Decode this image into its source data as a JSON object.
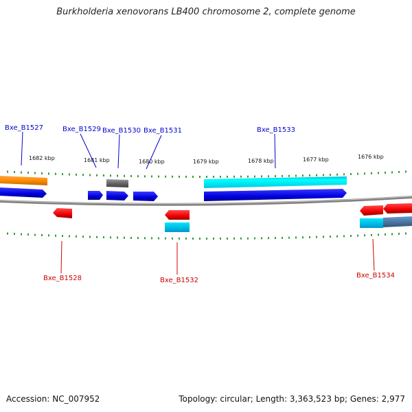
{
  "title": "Burkholderia xenovorans LB400 chromosome 2, complete genome",
  "accession": "Accession: NC_007952",
  "summary": "Topology: circular; Length: 3,363,523 bp; Genes: 2,977",
  "colors": {
    "forward_cds": "#0000ee",
    "reverse_cds": "#ee0000",
    "forward_label": "#0000cc",
    "reverse_label": "#cc0000",
    "tick": "#008000",
    "backbone": "#808080",
    "feature_orange": "#ff8c00",
    "feature_cyan": "#00e5ff",
    "feature_gray": "#666666",
    "feature_steelblue": "#4477aa"
  },
  "scale_labels": [
    "1682 kbp",
    "1681 kbp",
    "1680 kbp",
    "1679 kbp",
    "1678 kbp",
    "1677 kbp",
    "1676 kbp"
  ],
  "gene_labels": {
    "forward": [
      "Bxe_B1527",
      "Bxe_B1529",
      "Bxe_B1530",
      "Bxe_B1531",
      "Bxe_B1533"
    ],
    "reverse": [
      "Bxe_B1528",
      "Bxe_B1532",
      "Bxe_B1534"
    ]
  }
}
